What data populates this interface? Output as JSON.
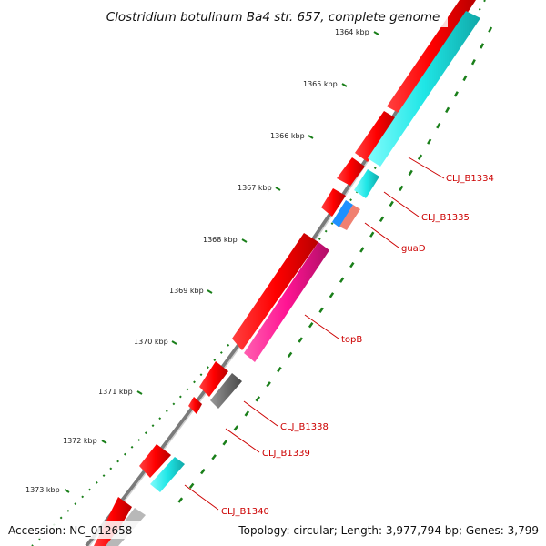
{
  "title": "Clostridium botulinum Ba4 str. 657, complete genome",
  "footer": {
    "accession": "Accession: NC_012658",
    "summary": "Topology: circular; Length: 3,977,794 bp; Genes: 3,799"
  },
  "colors": {
    "backbone": "#7a7a7a",
    "cds_forward": "#ff0000",
    "tick": "#1a7f1a",
    "label": "#cc0000",
    "cyan_gene": "#1fe6e6",
    "magenta_gene": "#ff1493",
    "grey_gene": "#707070",
    "salmon_gene": "#f08070",
    "blue_gene": "#1e90ff"
  },
  "scale": {
    "unit": "kbp",
    "ticks": [
      "1364 kbp",
      "1365 kbp",
      "1366 kbp",
      "1367 kbp",
      "1368 kbp",
      "1369 kbp",
      "1370 kbp",
      "1371 kbp",
      "1372 kbp",
      "1373 kbp"
    ]
  },
  "gene_labels": [
    "CLJ_B1334",
    "CLJ_B1335",
    "guaD",
    "topB",
    "CLJ_B1338",
    "CLJ_B1339",
    "CLJ_B1340"
  ]
}
